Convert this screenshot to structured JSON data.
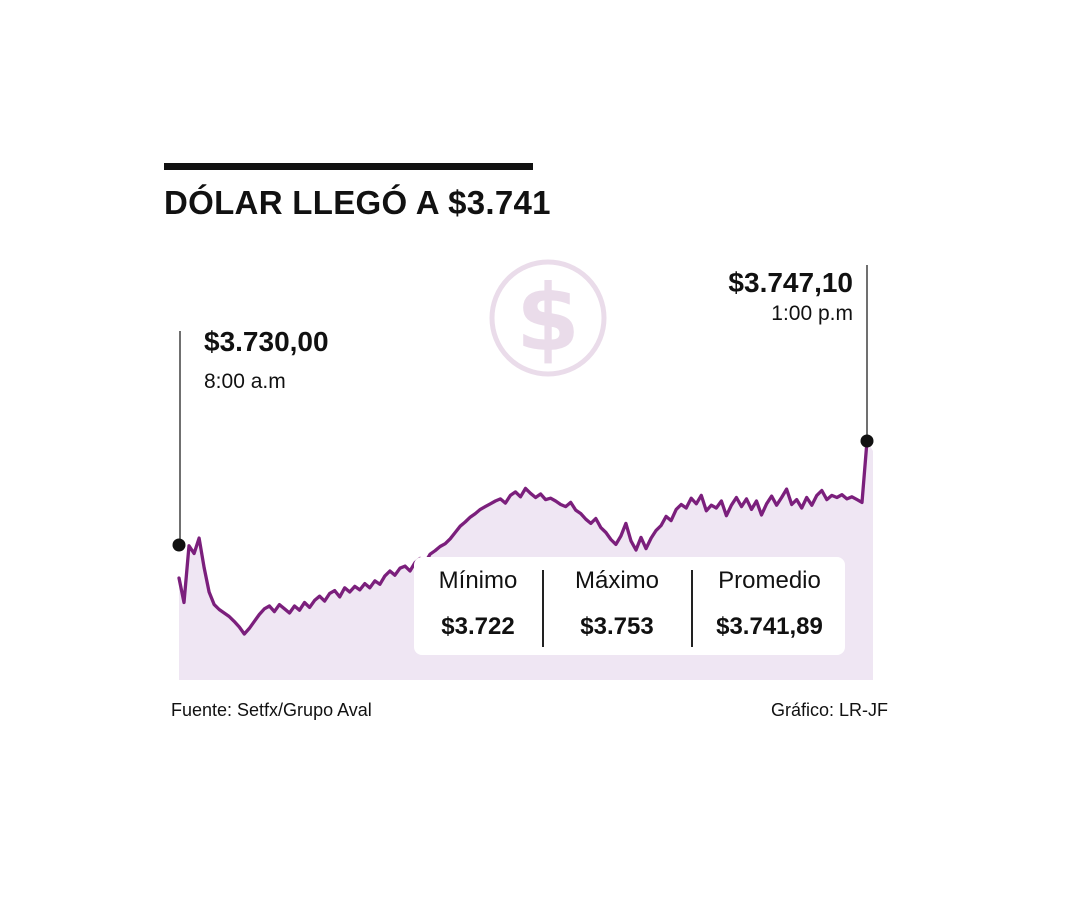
{
  "title": "DÓLAR LLEGÓ A $3.741",
  "colors": {
    "line": "#7b1f7c",
    "area": "#efe6f3",
    "icon": "#eadcea",
    "text": "#111111"
  },
  "icon": "dollar-coin-icon",
  "annotations": {
    "open": {
      "value": "$3.730,00",
      "time": "8:00 a.m"
    },
    "close": {
      "value": "$3.747,10",
      "time": "1:00 p.m"
    }
  },
  "stats": [
    {
      "label": "Mínimo",
      "value": "$3.722"
    },
    {
      "label": "Máximo",
      "value": "$3.753"
    },
    {
      "label": "Promedio",
      "value": "$3.741,89"
    }
  ],
  "footer": {
    "source": "Fuente: Setfx/Grupo Aval",
    "credit": "Gráfico: LR-JF"
  },
  "chart_data": {
    "type": "area",
    "x_start": "8:00 a.m",
    "x_end": "1:00 p.m",
    "ylim": [
      3720,
      3755
    ],
    "series": [
      {
        "values": [
          3730.0,
          3726.5,
          3734.6,
          3733.5,
          3735.7,
          3731.5,
          3728.0,
          3726.2,
          3725.5,
          3725.0,
          3724.5,
          3723.8,
          3723.0,
          3722.0,
          3722.8,
          3723.8,
          3724.8,
          3725.6,
          3726.0,
          3725.2,
          3726.2,
          3725.6,
          3725.0,
          3726.0,
          3725.4,
          3726.5,
          3725.8,
          3726.8,
          3727.4,
          3726.7,
          3727.8,
          3728.2,
          3727.3,
          3728.6,
          3728.0,
          3728.8,
          3728.3,
          3729.2,
          3728.6,
          3729.6,
          3729.1,
          3730.3,
          3731.0,
          3730.4,
          3731.4,
          3731.7,
          3731.0,
          3732.2,
          3732.8,
          3732.2,
          3733.4,
          3733.9,
          3734.5,
          3734.9,
          3735.6,
          3736.5,
          3737.4,
          3738.0,
          3738.7,
          3739.2,
          3739.8,
          3740.2,
          3740.6,
          3741.0,
          3741.3,
          3740.7,
          3741.8,
          3742.3,
          3741.6,
          3742.8,
          3742.1,
          3741.5,
          3742.0,
          3741.2,
          3741.4,
          3741.0,
          3740.5,
          3740.2,
          3740.8,
          3739.7,
          3739.2,
          3738.4,
          3737.8,
          3738.5,
          3737.2,
          3736.5,
          3735.5,
          3734.8,
          3736.0,
          3737.8,
          3735.3,
          3734.0,
          3735.8,
          3734.2,
          3735.7,
          3736.8,
          3737.5,
          3738.8,
          3738.2,
          3739.8,
          3740.5,
          3740.0,
          3741.4,
          3740.6,
          3741.8,
          3739.6,
          3740.4,
          3740.0,
          3741.0,
          3738.9,
          3740.4,
          3741.5,
          3740.2,
          3741.3,
          3739.8,
          3741.0,
          3739.0,
          3740.6,
          3741.7,
          3740.4,
          3741.5,
          3742.7,
          3740.5,
          3741.2,
          3740.0,
          3741.5,
          3740.4,
          3741.8,
          3742.5,
          3741.2,
          3741.8,
          3741.5,
          3741.9,
          3741.3,
          3741.6,
          3741.2,
          3740.8,
          3747.1
        ]
      }
    ]
  }
}
